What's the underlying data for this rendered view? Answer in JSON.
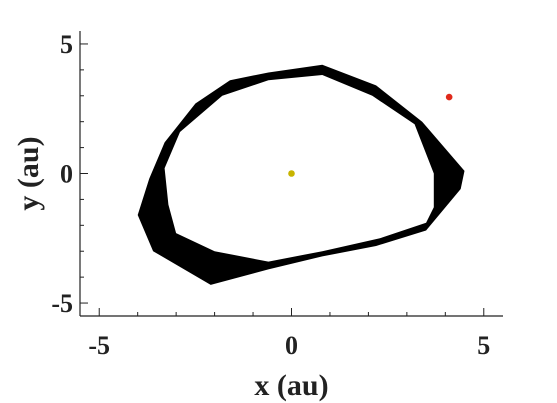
{
  "chart_data": {
    "type": "scatter",
    "xlabel": "x (au)",
    "ylabel": "y (au)",
    "xlim": [
      -5.5,
      5.5
    ],
    "ylim": [
      -5.5,
      5.5
    ],
    "x_ticks": [
      {
        "value": -5,
        "label": "-5"
      },
      {
        "value": 0,
        "label": "0"
      },
      {
        "value": 5,
        "label": "5"
      }
    ],
    "y_ticks": [
      {
        "value": 5,
        "label": "5"
      },
      {
        "value": 0,
        "label": "0"
      },
      {
        "value": -5,
        "label": "-5"
      }
    ],
    "minor_tick_step": 1,
    "grid": false,
    "orbit_band": {
      "color": "#000000",
      "outer": [
        [
          -0.6,
          3.9
        ],
        [
          0.8,
          4.2
        ],
        [
          2.2,
          3.4
        ],
        [
          3.4,
          2.0
        ],
        [
          4.5,
          0.1
        ],
        [
          4.4,
          -0.6
        ],
        [
          3.5,
          -2.2
        ],
        [
          2.2,
          -2.8
        ],
        [
          0.8,
          -3.2
        ],
        [
          -0.6,
          -3.7
        ],
        [
          -2.1,
          -4.3
        ],
        [
          -3.6,
          -3.0
        ],
        [
          -4.0,
          -1.6
        ],
        [
          -3.7,
          -0.2
        ],
        [
          -3.3,
          1.2
        ],
        [
          -2.5,
          2.7
        ],
        [
          -1.6,
          3.6
        ],
        [
          -0.6,
          3.9
        ]
      ],
      "inner": [
        [
          -0.6,
          3.6
        ],
        [
          0.8,
          3.8
        ],
        [
          2.1,
          3.0
        ],
        [
          3.2,
          1.9
        ],
        [
          3.7,
          0.0
        ],
        [
          3.7,
          -1.3
        ],
        [
          3.5,
          -1.9
        ],
        [
          2.3,
          -2.5
        ],
        [
          0.8,
          -3.0
        ],
        [
          -0.6,
          -3.4
        ],
        [
          -2.0,
          -3.0
        ],
        [
          -3.0,
          -2.3
        ],
        [
          -3.2,
          -1.2
        ],
        [
          -3.3,
          0.2
        ],
        [
          -2.9,
          1.6
        ],
        [
          -1.8,
          3.0
        ],
        [
          -0.6,
          3.6
        ]
      ]
    },
    "points": [
      {
        "x": 0.0,
        "y": 0.0,
        "color": "#c8b400"
      },
      {
        "x": 4.1,
        "y": 2.95,
        "color": "#e0291b"
      }
    ]
  }
}
